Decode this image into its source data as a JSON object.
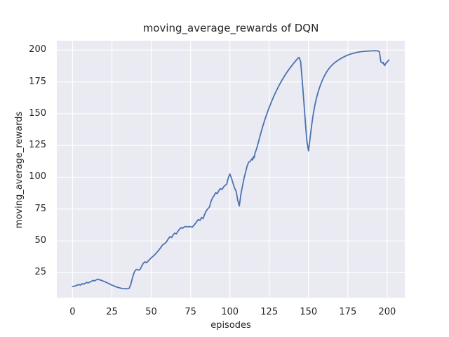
{
  "figure": {
    "title": "moving_average_rewards of DQN",
    "xlabel": "episodes",
    "ylabel": "moving_average_rewards"
  },
  "colors": {
    "line": "#4c72b0",
    "plot_background": "#eaeaf2",
    "grid": "#ffffff",
    "text": "#262626",
    "figure_background": "#ffffff"
  },
  "chart_data": {
    "type": "line",
    "title": "moving_average_rewards of DQN",
    "xlabel": "episodes",
    "ylabel": "moving_average_rewards",
    "x_ticks": [
      0,
      25,
      50,
      75,
      100,
      125,
      150,
      175,
      200
    ],
    "y_ticks": [
      25,
      50,
      75,
      100,
      125,
      150,
      175,
      200
    ],
    "xlim": [
      -10.0,
      211.2
    ],
    "ylim": [
      5.3,
      207.4
    ],
    "grid": true,
    "legend_position": "none",
    "series": [
      {
        "name": "moving_average_rewards",
        "color": "#4c72b0",
        "points": [
          [
            0,
            14.0
          ],
          [
            1,
            14.3
          ],
          [
            2,
            14.7
          ],
          [
            3,
            15.2
          ],
          [
            4,
            15.6
          ],
          [
            5,
            15.2
          ],
          [
            6,
            16.3
          ],
          [
            7,
            15.9
          ],
          [
            8,
            16.6
          ],
          [
            9,
            17.3
          ],
          [
            10,
            16.9
          ],
          [
            11,
            17.6
          ],
          [
            12,
            18.2
          ],
          [
            13,
            18.9
          ],
          [
            14,
            18.5
          ],
          [
            15,
            19.3
          ],
          [
            16,
            19.8
          ],
          [
            17,
            19.4
          ],
          [
            18,
            19.1
          ],
          [
            19,
            18.6
          ],
          [
            20,
            18.1
          ],
          [
            21,
            17.6
          ],
          [
            22,
            17.0
          ],
          [
            23,
            16.4
          ],
          [
            24,
            15.8
          ],
          [
            25,
            15.2
          ],
          [
            26,
            14.7
          ],
          [
            27,
            14.2
          ],
          [
            28,
            13.7
          ],
          [
            29,
            13.3
          ],
          [
            30,
            13.0
          ],
          [
            31,
            12.7
          ],
          [
            32,
            12.5
          ],
          [
            33,
            12.4
          ],
          [
            34,
            12.3
          ],
          [
            35,
            12.4
          ],
          [
            36,
            12.7
          ],
          [
            37,
            15.8
          ],
          [
            38,
            20.5
          ],
          [
            39,
            24.6
          ],
          [
            40,
            27.0
          ],
          [
            41,
            27.6
          ],
          [
            42,
            26.9
          ],
          [
            43,
            27.7
          ],
          [
            44,
            30.2
          ],
          [
            45,
            32.4
          ],
          [
            46,
            33.5
          ],
          [
            47,
            32.8
          ],
          [
            48,
            34.1
          ],
          [
            49,
            35.4
          ],
          [
            50,
            36.6
          ],
          [
            51,
            37.7
          ],
          [
            52,
            38.8
          ],
          [
            53,
            40.1
          ],
          [
            54,
            41.5
          ],
          [
            55,
            43.0
          ],
          [
            56,
            44.6
          ],
          [
            57,
            46.4
          ],
          [
            58,
            47.5
          ],
          [
            59,
            48.1
          ],
          [
            60,
            49.9
          ],
          [
            61,
            51.8
          ],
          [
            62,
            53.4
          ],
          [
            63,
            52.6
          ],
          [
            64,
            54.8
          ],
          [
            65,
            56.1
          ],
          [
            66,
            55.5
          ],
          [
            67,
            57.6
          ],
          [
            68,
            59.2
          ],
          [
            69,
            60.4
          ],
          [
            70,
            59.9
          ],
          [
            71,
            61.0
          ],
          [
            72,
            61.3
          ],
          [
            73,
            60.9
          ],
          [
            74,
            61.3
          ],
          [
            75,
            61.1
          ],
          [
            76,
            60.7
          ],
          [
            77,
            62.0
          ],
          [
            78,
            63.5
          ],
          [
            79,
            65.3
          ],
          [
            80,
            66.8
          ],
          [
            81,
            66.0
          ],
          [
            82,
            68.4
          ],
          [
            83,
            67.5
          ],
          [
            84,
            71.0
          ],
          [
            85,
            73.6
          ],
          [
            86,
            75.2
          ],
          [
            87,
            76.5
          ],
          [
            88,
            80.9
          ],
          [
            89,
            83.9
          ],
          [
            90,
            85.6
          ],
          [
            91,
            87.9
          ],
          [
            92,
            87.1
          ],
          [
            93,
            89.6
          ],
          [
            94,
            91.1
          ],
          [
            95,
            90.4
          ],
          [
            96,
            92.4
          ],
          [
            97,
            93.6
          ],
          [
            98,
            94.6
          ],
          [
            99,
            99.6
          ],
          [
            100,
            102.6
          ],
          [
            101,
            99.4
          ],
          [
            102,
            95.4
          ],
          [
            103,
            91.5
          ],
          [
            104,
            89.0
          ],
          [
            105,
            82.0
          ],
          [
            106,
            77.4
          ],
          [
            107,
            86.5
          ],
          [
            108,
            93.1
          ],
          [
            109,
            99.2
          ],
          [
            110,
            104.1
          ],
          [
            111,
            109.0
          ],
          [
            112,
            111.9
          ],
          [
            113,
            112.6
          ],
          [
            114,
            114.6
          ],
          [
            114.5,
            113.6
          ],
          [
            115,
            116.4
          ],
          [
            115.5,
            115.4
          ],
          [
            116,
            119.1
          ],
          [
            117,
            122.4
          ],
          [
            118,
            127.0
          ],
          [
            119,
            131.6
          ],
          [
            120,
            136.1
          ],
          [
            121,
            140.4
          ],
          [
            122,
            144.4
          ],
          [
            123,
            148.1
          ],
          [
            124,
            151.6
          ],
          [
            125,
            154.9
          ],
          [
            126,
            158.0
          ],
          [
            127,
            161.0
          ],
          [
            128,
            163.9
          ],
          [
            129,
            166.6
          ],
          [
            130,
            169.1
          ],
          [
            131,
            171.6
          ],
          [
            132,
            173.9
          ],
          [
            133,
            176.1
          ],
          [
            134,
            178.2
          ],
          [
            135,
            180.2
          ],
          [
            136,
            182.1
          ],
          [
            137,
            183.9
          ],
          [
            138,
            185.6
          ],
          [
            139,
            187.2
          ],
          [
            140,
            188.8
          ],
          [
            141,
            190.3
          ],
          [
            142,
            191.8
          ],
          [
            143,
            193.2
          ],
          [
            144,
            194.3
          ],
          [
            145,
            190.9
          ],
          [
            146,
            176.0
          ],
          [
            147,
            160.0
          ],
          [
            148,
            143.0
          ],
          [
            149,
            128.0
          ],
          [
            150,
            120.8
          ],
          [
            151,
            131.0
          ],
          [
            152,
            141.0
          ],
          [
            153,
            149.6
          ],
          [
            154,
            156.5
          ],
          [
            155,
            162.0
          ],
          [
            156,
            166.6
          ],
          [
            157,
            170.5
          ],
          [
            158,
            173.9
          ],
          [
            159,
            176.9
          ],
          [
            160,
            179.5
          ],
          [
            161,
            181.8
          ],
          [
            162,
            183.8
          ],
          [
            163,
            185.5
          ],
          [
            164,
            187.0
          ],
          [
            165,
            188.3
          ],
          [
            166,
            189.5
          ],
          [
            167,
            190.5
          ],
          [
            168,
            191.4
          ],
          [
            169,
            192.2
          ],
          [
            170,
            193.0
          ],
          [
            171,
            193.7
          ],
          [
            172,
            194.4
          ],
          [
            173,
            195.0
          ],
          [
            174,
            195.6
          ],
          [
            175,
            196.1
          ],
          [
            176,
            196.6
          ],
          [
            177,
            197.0
          ],
          [
            178,
            197.4
          ],
          [
            179,
            197.7
          ],
          [
            180,
            198.0
          ],
          [
            181,
            198.3
          ],
          [
            182,
            198.5
          ],
          [
            183,
            198.7
          ],
          [
            184,
            198.9
          ],
          [
            185,
            199.0
          ],
          [
            186,
            199.1
          ],
          [
            187,
            199.2
          ],
          [
            188,
            199.3
          ],
          [
            189,
            199.4
          ],
          [
            190,
            199.4
          ],
          [
            191,
            199.5
          ],
          [
            192,
            199.5
          ],
          [
            193,
            199.5
          ],
          [
            194,
            199.4
          ],
          [
            195,
            198.8
          ],
          [
            196,
            190.8
          ],
          [
            197,
            189.8
          ],
          [
            197.5,
            190.3
          ],
          [
            198,
            188.5
          ],
          [
            198.5,
            187.9
          ],
          [
            199,
            189.3
          ],
          [
            200,
            190.6
          ],
          [
            201,
            192.3
          ]
        ]
      }
    ]
  }
}
